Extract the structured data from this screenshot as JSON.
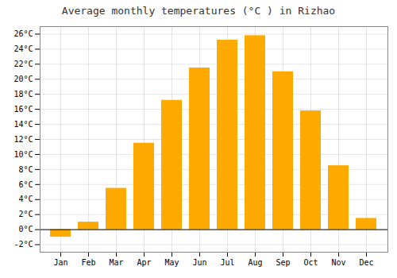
{
  "chart_data": {
    "type": "bar",
    "title": "Average monthly temperatures (°C ) in Rizhao",
    "categories": [
      "Jan",
      "Feb",
      "Mar",
      "Apr",
      "May",
      "Jun",
      "Jul",
      "Aug",
      "Sep",
      "Oct",
      "Nov",
      "Dec"
    ],
    "values": [
      -1.0,
      1.0,
      5.5,
      11.5,
      17.2,
      21.5,
      25.2,
      25.8,
      21.0,
      15.8,
      8.5,
      1.5
    ],
    "color": "#FFAA00",
    "ylim": [
      -3,
      27
    ],
    "yticks": [
      {
        "value": -2,
        "label": "-2°C"
      },
      {
        "value": 0,
        "label": "0°C"
      },
      {
        "value": 2,
        "label": "2°C"
      },
      {
        "value": 4,
        "label": "4°C"
      },
      {
        "value": 6,
        "label": "6°C"
      },
      {
        "value": 8,
        "label": "8°C"
      },
      {
        "value": 10,
        "label": "10°C"
      },
      {
        "value": 12,
        "label": "12°C"
      },
      {
        "value": 14,
        "label": "14°C"
      },
      {
        "value": 16,
        "label": "16°C"
      },
      {
        "value": 18,
        "label": "18°C"
      },
      {
        "value": 20,
        "label": "20°C"
      },
      {
        "value": 22,
        "label": "22°C"
      },
      {
        "value": 24,
        "label": "24°C"
      },
      {
        "value": 26,
        "label": "26°C"
      }
    ],
    "grid": true
  }
}
